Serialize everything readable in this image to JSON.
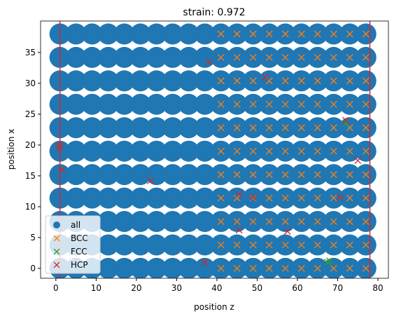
{
  "chart_data": {
    "type": "scatter",
    "title": "strain: 0.972",
    "xlabel": "position z",
    "ylabel": "position x",
    "xlim": [
      -3.8,
      82.6
    ],
    "ylim": [
      -1.6,
      40.1
    ],
    "xticks": [
      0,
      10,
      20,
      30,
      40,
      50,
      60,
      70,
      80
    ],
    "yticks": [
      0,
      5,
      10,
      15,
      20,
      25,
      30,
      35
    ],
    "legend": "lower left",
    "vlines": [
      1,
      78
    ],
    "vline_color": "#d62728",
    "series": [
      {
        "name": "all",
        "color": "#1f77b4",
        "marker": "circle",
        "x": [
          1,
          5,
          9,
          13,
          17,
          21,
          25,
          29,
          33,
          37,
          41,
          45,
          49,
          53,
          57,
          61,
          65,
          69,
          73,
          77,
          1,
          5,
          9,
          13,
          17,
          21,
          25,
          29,
          33,
          37,
          41,
          45,
          49,
          53,
          57,
          61,
          65,
          69,
          73,
          77,
          1,
          5,
          9,
          13,
          17,
          21,
          25,
          29,
          33,
          37,
          41,
          45,
          49,
          53,
          57,
          61,
          65,
          69,
          73,
          77,
          1,
          5,
          9,
          13,
          17,
          21,
          25,
          29,
          33,
          37,
          41,
          45,
          49,
          53,
          57,
          61,
          65,
          69,
          73,
          77,
          1,
          5,
          9,
          13,
          17,
          21,
          25,
          29,
          33,
          37,
          41,
          45,
          49,
          53,
          57,
          61,
          65,
          69,
          73,
          77,
          1,
          5,
          9,
          13,
          17,
          21,
          25,
          29,
          33,
          37,
          41,
          45,
          49,
          53,
          57,
          61,
          65,
          69,
          73,
          77,
          1,
          5,
          9,
          13,
          17,
          21,
          25,
          29,
          33,
          37,
          41,
          45,
          49,
          53,
          57,
          61,
          65,
          69,
          73,
          77,
          1,
          5,
          9,
          13,
          17,
          21,
          25,
          29,
          33,
          37,
          41,
          45,
          49,
          53,
          57,
          61,
          65,
          69,
          73,
          77,
          1,
          5,
          9,
          13,
          17,
          21,
          25,
          29,
          33,
          37,
          41,
          45,
          49,
          53,
          57,
          61,
          65,
          69,
          73,
          77,
          1,
          5,
          9,
          13,
          17,
          21,
          25,
          29,
          33,
          37,
          41,
          45,
          49,
          53,
          57,
          61,
          65,
          69,
          73,
          77,
          1,
          5,
          9,
          13,
          17,
          21,
          25,
          29,
          33,
          37,
          41,
          45,
          49,
          53,
          57,
          61,
          65,
          69,
          73,
          77
        ],
        "y": [
          0,
          0,
          0,
          0,
          0,
          0,
          0,
          0,
          0,
          0,
          0,
          0,
          0,
          0,
          0,
          0,
          0,
          0,
          0,
          0,
          3.8,
          3.8,
          3.8,
          3.8,
          3.8,
          3.8,
          3.8,
          3.8,
          3.8,
          3.8,
          3.8,
          3.8,
          3.8,
          3.8,
          3.8,
          3.8,
          3.8,
          3.8,
          3.8,
          3.8,
          7.6,
          7.6,
          7.6,
          7.6,
          7.6,
          7.6,
          7.6,
          7.6,
          7.6,
          7.6,
          7.6,
          7.6,
          7.6,
          7.6,
          7.6,
          7.6,
          7.6,
          7.6,
          7.6,
          7.6,
          11.4,
          11.4,
          11.4,
          11.4,
          11.4,
          11.4,
          11.4,
          11.4,
          11.4,
          11.4,
          11.4,
          11.4,
          11.4,
          11.4,
          11.4,
          11.4,
          11.4,
          11.4,
          11.4,
          11.4,
          15.2,
          15.2,
          15.2,
          15.2,
          15.2,
          15.2,
          15.2,
          15.2,
          15.2,
          15.2,
          15.2,
          15.2,
          15.2,
          15.2,
          15.2,
          15.2,
          15.2,
          15.2,
          15.2,
          15.2,
          19,
          19,
          19,
          19,
          19,
          19,
          19,
          19,
          19,
          19,
          19,
          19,
          19,
          19,
          19,
          19,
          19,
          19,
          19,
          19,
          22.8,
          22.8,
          22.8,
          22.8,
          22.8,
          22.8,
          22.8,
          22.8,
          22.8,
          22.8,
          22.8,
          22.8,
          22.8,
          22.8,
          22.8,
          22.8,
          22.8,
          22.8,
          22.8,
          22.8,
          26.6,
          26.6,
          26.6,
          26.6,
          26.6,
          26.6,
          26.6,
          26.6,
          26.6,
          26.6,
          26.6,
          26.6,
          26.6,
          26.6,
          26.6,
          26.6,
          26.6,
          26.6,
          26.6,
          26.6,
          30.4,
          30.4,
          30.4,
          30.4,
          30.4,
          30.4,
          30.4,
          30.4,
          30.4,
          30.4,
          30.4,
          30.4,
          30.4,
          30.4,
          30.4,
          30.4,
          30.4,
          30.4,
          30.4,
          30.4,
          34.2,
          34.2,
          34.2,
          34.2,
          34.2,
          34.2,
          34.2,
          34.2,
          34.2,
          34.2,
          34.2,
          34.2,
          34.2,
          34.2,
          34.2,
          34.2,
          34.2,
          34.2,
          34.2,
          34.2,
          38,
          38,
          38,
          38,
          38,
          38,
          38,
          38,
          38,
          38,
          38,
          38,
          38,
          38,
          38,
          38,
          38,
          38,
          38,
          38
        ]
      },
      {
        "name": "BCC",
        "color": "#ff7f0e",
        "marker": "x",
        "x": [
          41,
          45,
          49,
          53,
          57,
          61,
          65,
          69,
          73,
          77,
          41,
          45,
          49,
          53,
          57,
          61,
          65,
          69,
          73,
          77,
          41,
          45,
          49,
          53,
          57,
          61,
          65,
          69,
          73,
          77,
          41,
          45,
          49,
          53,
          57,
          61,
          65,
          69,
          73,
          77,
          41,
          45,
          49,
          53,
          57,
          61,
          65,
          69,
          73,
          77,
          41,
          45,
          49,
          53,
          57,
          61,
          65,
          69,
          73,
          77,
          41,
          45,
          49,
          53,
          57,
          61,
          65,
          69,
          73,
          77,
          41,
          45,
          49,
          53,
          57,
          61,
          65,
          69,
          73,
          77,
          41,
          45,
          49,
          53,
          57,
          61,
          65,
          69,
          73,
          77,
          41,
          45,
          49,
          53,
          57,
          61,
          65,
          69,
          73,
          77,
          41,
          45,
          49,
          53,
          57,
          61,
          65,
          69,
          73,
          77
        ],
        "y": [
          0,
          0,
          0,
          0,
          0,
          0,
          0,
          0,
          0,
          0,
          3.8,
          3.8,
          3.8,
          3.8,
          3.8,
          3.8,
          3.8,
          3.8,
          3.8,
          3.8,
          7.6,
          7.6,
          7.6,
          7.6,
          7.6,
          7.6,
          7.6,
          7.6,
          7.6,
          7.6,
          11.4,
          11.4,
          11.4,
          11.4,
          11.4,
          11.4,
          11.4,
          11.4,
          11.4,
          11.4,
          15.2,
          15.2,
          15.2,
          15.2,
          15.2,
          15.2,
          15.2,
          15.2,
          15.2,
          15.2,
          19,
          19,
          19,
          19,
          19,
          19,
          19,
          19,
          19,
          19,
          22.8,
          22.8,
          22.8,
          22.8,
          22.8,
          22.8,
          22.8,
          22.8,
          22.8,
          22.8,
          26.6,
          26.6,
          26.6,
          26.6,
          26.6,
          26.6,
          26.6,
          26.6,
          26.6,
          26.6,
          30.4,
          30.4,
          30.4,
          30.4,
          30.4,
          30.4,
          30.4,
          30.4,
          30.4,
          30.4,
          34.2,
          34.2,
          34.2,
          34.2,
          34.2,
          34.2,
          34.2,
          34.2,
          34.2,
          34.2,
          38,
          38,
          38,
          38,
          38,
          38,
          38,
          38,
          38,
          38
        ]
      },
      {
        "name": "FCC",
        "color": "#2ca02c",
        "marker": "x",
        "x": [
          72,
          68,
          67.5
        ],
        "y": [
          23.5,
          1.2,
          1
        ]
      },
      {
        "name": "HCP",
        "color": "#d62728",
        "marker": "x",
        "x": [
          1,
          1.5,
          0.8,
          23.5,
          37,
          38,
          45.5,
          49,
          45.5,
          57.5,
          70.5,
          75,
          52,
          72
        ],
        "y": [
          20,
          16,
          19.5,
          14.2,
          1,
          33.5,
          12,
          11.5,
          6.2,
          6,
          11.5,
          17.5,
          31,
          24
        ]
      }
    ]
  }
}
